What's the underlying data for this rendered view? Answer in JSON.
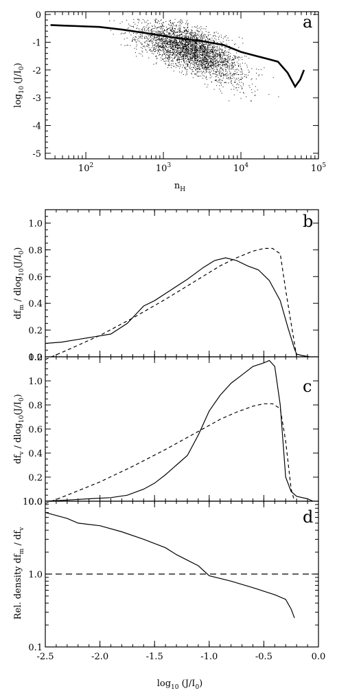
{
  "chart_data": [
    {
      "panel": "a",
      "type": "scatter",
      "xlabel": "n_H",
      "ylabel": "log10 (J/I0)",
      "xscale": "log",
      "xlim": [
        30,
        100000
      ],
      "ylim": [
        -5.2,
        0.1
      ],
      "x_ticks": [
        "10^2",
        "10^3",
        "10^4",
        "10^5"
      ],
      "y_ticks": [
        "0",
        "-1",
        "-2",
        "-3",
        "-4",
        "-5"
      ],
      "point_cloud": {
        "description_points": 5000,
        "upper_envelope": -0.15,
        "center_log10_x": 3.35,
        "spread_log10_x": 0.55
      },
      "series": [
        {
          "style": "thick-solid",
          "x": [
            35,
            50,
            80,
            150,
            300,
            700,
            1500,
            3000,
            6000,
            10000,
            16000,
            22000,
            30000,
            40000,
            50000,
            58000,
            65000
          ],
          "y": [
            -0.38,
            -0.4,
            -0.42,
            -0.45,
            -0.55,
            -0.7,
            -0.85,
            -0.95,
            -1.1,
            -1.35,
            -1.5,
            -1.6,
            -1.7,
            -2.1,
            -2.6,
            -2.35,
            -2.0
          ]
        }
      ]
    },
    {
      "panel": "b",
      "type": "line",
      "xlabel": "",
      "ylabel": "df_m / dlog10(J/I0)",
      "xlim": [
        -2.5,
        0.0
      ],
      "ylim": [
        0.0,
        1.1
      ],
      "y_ticks": [
        "0.0",
        "0.2",
        "0.4",
        "0.6",
        "0.8",
        "1.0"
      ],
      "series": [
        {
          "style": "solid",
          "x": [
            -2.5,
            -2.35,
            -2.2,
            -2.05,
            -1.9,
            -1.75,
            -1.6,
            -1.5,
            -1.35,
            -1.2,
            -1.05,
            -0.95,
            -0.85,
            -0.75,
            -0.65,
            -0.55,
            -0.45,
            -0.35,
            -0.28,
            -0.22,
            -0.2,
            -0.15,
            -0.08
          ],
          "y": [
            0.1,
            0.11,
            0.13,
            0.15,
            0.17,
            0.25,
            0.38,
            0.42,
            0.5,
            0.58,
            0.67,
            0.72,
            0.74,
            0.72,
            0.68,
            0.65,
            0.57,
            0.42,
            0.22,
            0.06,
            0.02,
            0.01,
            0.0
          ]
        },
        {
          "style": "dashed",
          "x": [
            -2.5,
            -2.3,
            -2.0,
            -1.7,
            -1.4,
            -1.1,
            -0.9,
            -0.75,
            -0.6,
            -0.5,
            -0.42,
            -0.35,
            -0.3,
            -0.22,
            -0.2
          ],
          "y": [
            -0.02,
            0.05,
            0.16,
            0.29,
            0.43,
            0.58,
            0.68,
            0.74,
            0.79,
            0.81,
            0.81,
            0.77,
            0.5,
            0.1,
            0.0
          ]
        }
      ]
    },
    {
      "panel": "c",
      "type": "line",
      "xlabel": "",
      "ylabel": "df_v / dlog10(J/I0)",
      "xlim": [
        -2.5,
        0.0
      ],
      "ylim": [
        0.0,
        1.2
      ],
      "y_ticks": [
        "0.0",
        "0.2",
        "0.4",
        "0.6",
        "0.8",
        "1.0",
        "1.2"
      ],
      "series": [
        {
          "style": "solid",
          "x": [
            -2.5,
            -2.3,
            -2.1,
            -1.9,
            -1.75,
            -1.6,
            -1.5,
            -1.4,
            -1.3,
            -1.2,
            -1.1,
            -1.0,
            -0.9,
            -0.8,
            -0.7,
            -0.6,
            -0.5,
            -0.45,
            -0.4,
            -0.35,
            -0.3,
            -0.25,
            -0.2,
            -0.1,
            -0.05
          ],
          "y": [
            0.0,
            0.01,
            0.02,
            0.03,
            0.05,
            0.1,
            0.15,
            0.22,
            0.3,
            0.38,
            0.55,
            0.75,
            0.88,
            0.98,
            1.05,
            1.12,
            1.15,
            1.17,
            1.12,
            0.8,
            0.2,
            0.08,
            0.04,
            0.02,
            0.0
          ]
        },
        {
          "style": "dashed",
          "x": [
            -2.5,
            -2.3,
            -2.0,
            -1.7,
            -1.4,
            -1.1,
            -0.9,
            -0.75,
            -0.6,
            -0.5,
            -0.42,
            -0.35,
            -0.3,
            -0.25,
            -0.22
          ],
          "y": [
            -0.02,
            0.05,
            0.16,
            0.29,
            0.43,
            0.58,
            0.68,
            0.74,
            0.79,
            0.81,
            0.81,
            0.77,
            0.5,
            0.1,
            0.0
          ]
        }
      ]
    },
    {
      "panel": "d",
      "type": "line",
      "xlabel": "log10 (J/I0)",
      "ylabel": "Rel. density df_m / df_v",
      "yscale": "log",
      "xlim": [
        -2.5,
        0.0
      ],
      "ylim": [
        0.1,
        10.0
      ],
      "x_ticks": [
        "-2.5",
        "-2.0",
        "-1.5",
        "-1.0",
        "-0.5",
        "0.0"
      ],
      "y_ticks": [
        "0.1",
        "1.0",
        "10.0"
      ],
      "series": [
        {
          "style": "solid",
          "x": [
            -2.5,
            -2.3,
            -2.2,
            -2.0,
            -1.8,
            -1.6,
            -1.4,
            -1.3,
            -1.2,
            -1.1,
            -1.0,
            -0.8,
            -0.6,
            -0.4,
            -0.3,
            -0.25,
            -0.22
          ],
          "y": [
            7.0,
            5.8,
            5.0,
            4.6,
            3.8,
            3.0,
            2.3,
            1.85,
            1.55,
            1.3,
            0.95,
            0.8,
            0.65,
            0.52,
            0.45,
            0.33,
            0.25
          ]
        },
        {
          "style": "reference-dashed",
          "x": [
            -2.5,
            0.0
          ],
          "y": [
            1.0,
            1.0
          ]
        }
      ]
    }
  ],
  "labels": {
    "panel_a_letter": "a",
    "panel_b_letter": "b",
    "panel_c_letter": "c",
    "panel_d_letter": "d",
    "a_xlabel_main": "n",
    "a_xlabel_sub": "H",
    "a_ylabel_main": "log",
    "a_ylabel_sub": "10",
    "a_ylabel_rest": "(J/I",
    "a_ylabel_sub2": "0",
    "a_ylabel_close": ")",
    "b_ylabel_1": "df",
    "b_ylabel_sub1": "m",
    "b_ylabel_2": " / dlog",
    "b_ylabel_sub2": "10",
    "b_ylabel_3": "(J/I",
    "b_ylabel_sub3": "0",
    "b_ylabel_4": ")",
    "c_ylabel_1": "df",
    "c_ylabel_sub1": "v",
    "c_ylabel_2": " / dlog",
    "c_ylabel_sub2": "10",
    "c_ylabel_3": "(J/I",
    "c_ylabel_sub3": "0",
    "c_ylabel_4": ")",
    "d_ylabel_1": "Rel. density df",
    "d_ylabel_sub1": "m",
    "d_ylabel_2": " / df",
    "d_ylabel_sub2": "v",
    "d_xlabel_main": "log",
    "d_xlabel_sub": "10",
    "d_xlabel_rest": " (J/I",
    "d_xlabel_sub2": "0",
    "d_xlabel_close": ")",
    "a_xtick_base": "10",
    "a_xtick_exp": [
      "2",
      "3",
      "4",
      "5"
    ]
  }
}
